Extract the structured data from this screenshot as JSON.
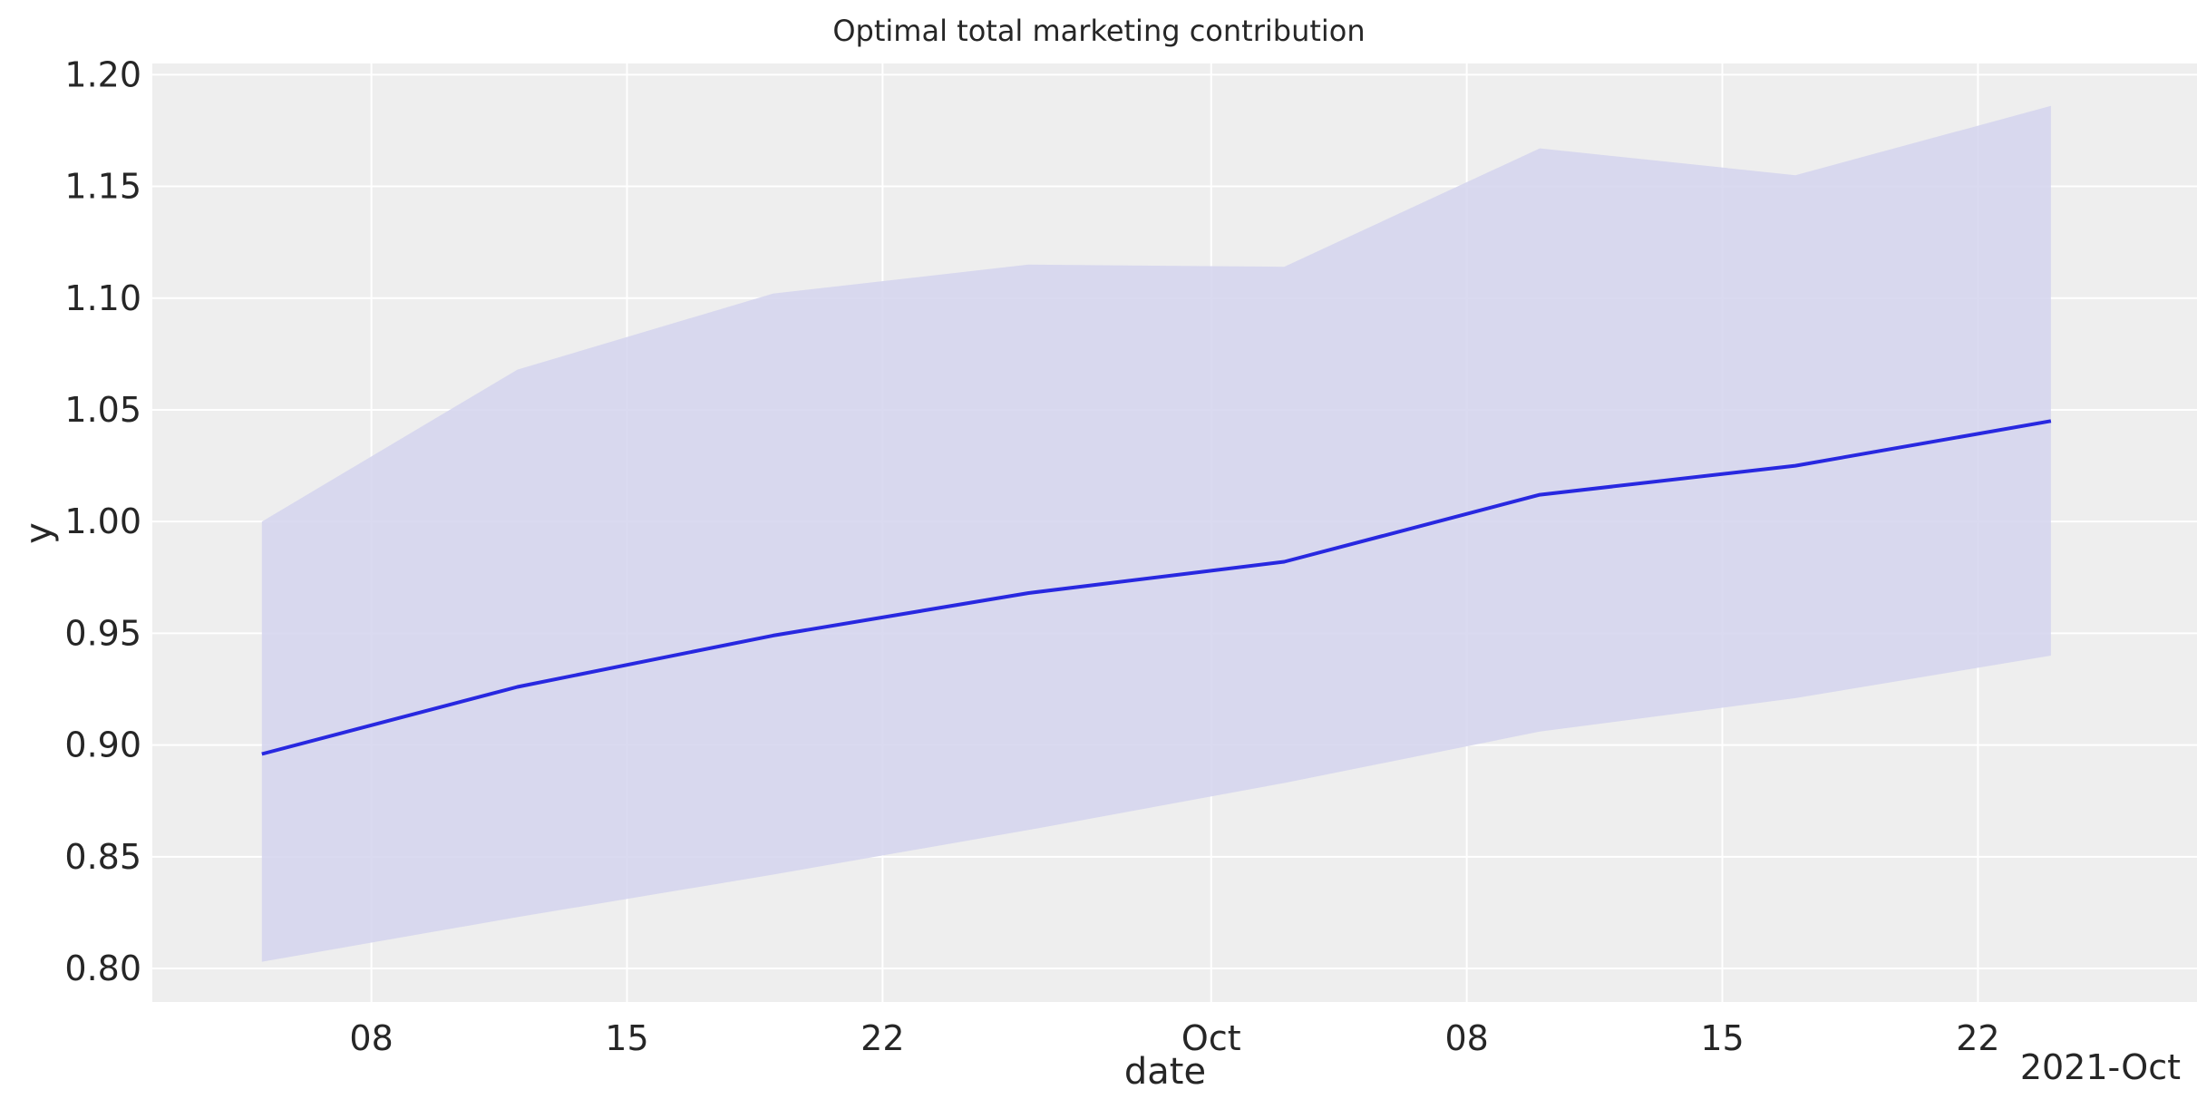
{
  "chart_data": {
    "type": "line",
    "title": "Optimal total marketing contribution",
    "xlabel": "date",
    "ylabel": "y",
    "x_offset_label": "2021-Oct",
    "x": [
      "2021-09-05",
      "2021-09-12",
      "2021-09-19",
      "2021-09-26",
      "2021-10-03",
      "2021-10-10",
      "2021-10-17",
      "2021-10-24"
    ],
    "x_range": [
      "2021-09-02",
      "2021-10-28"
    ],
    "xticks": [
      {
        "date": "2021-09-08",
        "label": "08"
      },
      {
        "date": "2021-09-15",
        "label": "15"
      },
      {
        "date": "2021-09-22",
        "label": "22"
      },
      {
        "date": "2021-10-01",
        "label": "Oct"
      },
      {
        "date": "2021-10-08",
        "label": "08"
      },
      {
        "date": "2021-10-15",
        "label": "15"
      },
      {
        "date": "2021-10-22",
        "label": "22"
      }
    ],
    "ylim": [
      0.785,
      1.205
    ],
    "yticks": [
      "0.80",
      "0.85",
      "0.90",
      "0.95",
      "1.00",
      "1.05",
      "1.10",
      "1.15",
      "1.20"
    ],
    "grid": true,
    "series": [
      {
        "values": [
          0.896,
          0.926,
          0.949,
          0.968,
          0.982,
          1.012,
          1.025,
          1.045
        ],
        "lower": [
          0.803,
          0.823,
          0.842,
          0.862,
          0.883,
          0.906,
          0.921,
          0.94
        ],
        "upper": [
          1.0,
          1.068,
          1.102,
          1.115,
          1.114,
          1.167,
          1.155,
          1.186
        ],
        "line_color": "#2828e0",
        "band_color": "#d4d4ed"
      }
    ]
  },
  "colors": {
    "axes_background": "#eeeeee",
    "grid": "#ffffff",
    "text": "#262626"
  }
}
